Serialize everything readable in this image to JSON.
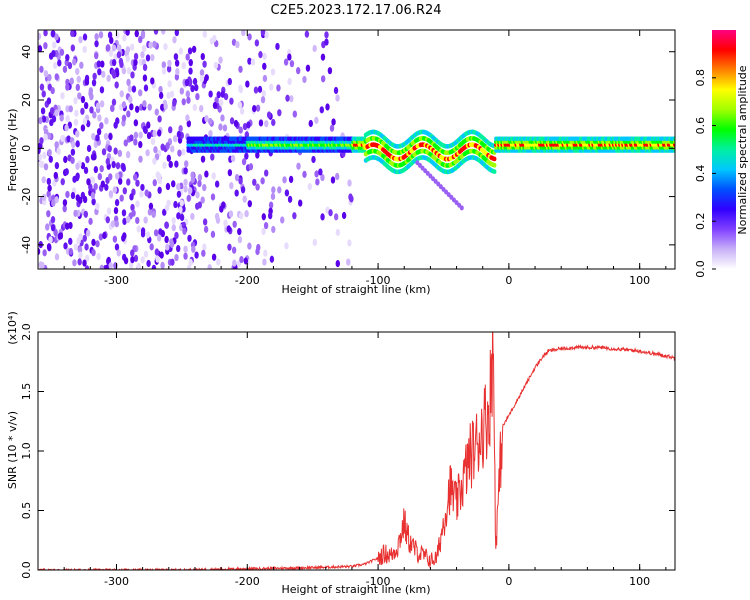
{
  "title": "C2E5.2023.172.17.06.R24",
  "chart_data": [
    {
      "type": "heatmap",
      "xlabel": "Height of straight line (km)",
      "ylabel": "Frequency (Hz)",
      "xlim": [
        -360,
        127
      ],
      "ylim": [
        -50,
        49
      ],
      "xticks": [
        -300,
        -200,
        -100,
        0,
        100
      ],
      "xtick_labels": [
        "-300",
        "-200",
        "-100",
        "0",
        "100"
      ],
      "yticks": [
        -40,
        -20,
        0,
        20,
        40
      ],
      "ytick_labels": [
        "-40",
        "-20",
        "0",
        "20",
        "40"
      ],
      "colorbar": {
        "label": "Normalized spectral amplitude",
        "range": [
          0,
          1
        ],
        "ticks": [
          0.0,
          0.2,
          0.4,
          0.6,
          0.8
        ],
        "tick_labels": [
          "0.0",
          "0.2",
          "0.4",
          "0.6",
          "0.8"
        ],
        "colors": [
          "#ffffff",
          "#c8b0f8",
          "#8040ff",
          "#3000ff",
          "#0050ff",
          "#00c8ff",
          "#00f0a0",
          "#00ff00",
          "#a0ff00",
          "#ffff00",
          "#ff8000",
          "#ff0000",
          "#ff0080"
        ]
      },
      "signal_band": {
        "center_frequency": 1.5,
        "start_height": -245,
        "end_height": 127
      },
      "grid": false
    },
    {
      "type": "line",
      "xlabel": "Height of straight line (km)",
      "ylabel": "SNR (10 * v/v)",
      "y_multiplier_label": "(x10⁴)",
      "xlim": [
        -360,
        127
      ],
      "ylim": [
        0,
        2.0
      ],
      "xticks": [
        -300,
        -200,
        -100,
        0,
        100
      ],
      "xtick_labels": [
        "-300",
        "-200",
        "-100",
        "0",
        "100"
      ],
      "yticks": [
        0.0,
        0.5,
        1.0,
        1.5,
        2.0
      ],
      "ytick_labels": [
        "0.0",
        "0.5",
        "1.0",
        "1.5",
        "2.0"
      ],
      "color": "#e83030",
      "series": [
        {
          "x": [
            -360,
            -300,
            -250,
            -200,
            -150,
            -120,
            -110,
            -100,
            -95,
            -90,
            -85,
            -80,
            -78,
            -75,
            -70,
            -65,
            -60,
            -55,
            -50,
            -45,
            -40,
            -35,
            -30,
            -25,
            -20,
            -15,
            -12,
            -10,
            -5,
            0,
            5,
            10,
            15,
            20,
            25,
            30,
            40,
            50,
            60,
            70,
            80,
            90,
            100,
            110,
            120,
            127
          ],
          "values": [
            0.0,
            0.0,
            0.0,
            0.01,
            0.02,
            0.03,
            0.05,
            0.1,
            0.14,
            0.12,
            0.2,
            0.4,
            0.3,
            0.22,
            0.15,
            0.12,
            0.08,
            0.1,
            0.4,
            0.7,
            0.55,
            0.75,
            0.95,
            1.05,
            1.2,
            1.35,
            1.9,
            0.2,
            1.2,
            1.3,
            1.4,
            1.5,
            1.6,
            1.7,
            1.78,
            1.84,
            1.86,
            1.87,
            1.87,
            1.87,
            1.86,
            1.85,
            1.84,
            1.82,
            1.8,
            1.78
          ]
        }
      ]
    }
  ]
}
